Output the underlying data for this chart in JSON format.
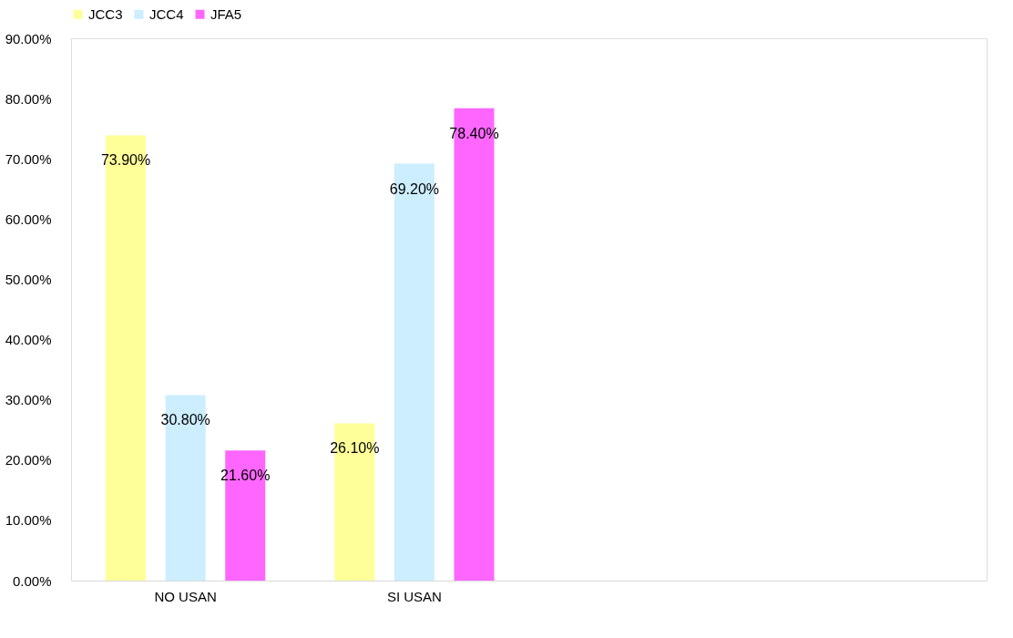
{
  "chart_data": {
    "type": "bar",
    "categories": [
      "NO USAN",
      "SI USAN",
      null,
      null
    ],
    "series": [
      {
        "name": "JCC3",
        "color": "#ffff99",
        "values": [
          73.9,
          26.1,
          null,
          null
        ],
        "value_labels": [
          "73.90%",
          "26.10%",
          null,
          null
        ]
      },
      {
        "name": "JCC4",
        "color": "#cceeff",
        "values": [
          30.8,
          69.2,
          null,
          null
        ],
        "value_labels": [
          "30.80%",
          "69.20%",
          null,
          null
        ]
      },
      {
        "name": "JFA5",
        "color": "#ff66ff",
        "values": [
          21.6,
          78.4,
          null,
          null
        ],
        "value_labels": [
          "21.60%",
          "78.40%",
          null,
          null
        ]
      }
    ],
    "ylim": [
      0,
      90
    ],
    "yticks": [
      {
        "value": 0,
        "label": "0.00%"
      },
      {
        "value": 10,
        "label": "10.00%"
      },
      {
        "value": 20,
        "label": "20.00%"
      },
      {
        "value": 30,
        "label": "30.00%"
      },
      {
        "value": 40,
        "label": "40.00%"
      },
      {
        "value": 50,
        "label": "50.00%"
      },
      {
        "value": 60,
        "label": "60.00%"
      },
      {
        "value": 70,
        "label": "70.00%"
      },
      {
        "value": 80,
        "label": "80.00%"
      },
      {
        "value": 90,
        "label": "90.00%"
      }
    ],
    "grid": false,
    "legend": "top"
  }
}
